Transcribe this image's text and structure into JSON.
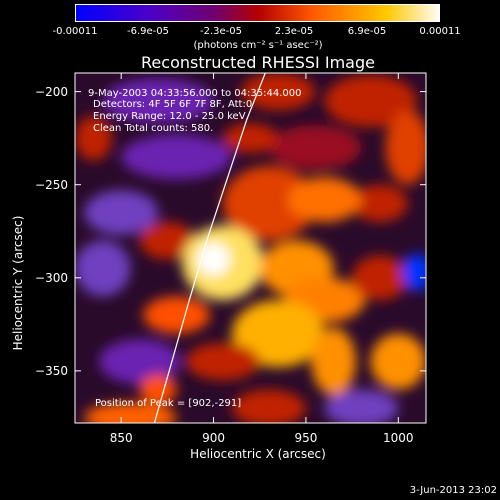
{
  "colorbar": {
    "ticks": [
      "-0.00011",
      "-6.9e-05",
      "-2.3e-05",
      "2.3e-05",
      "6.9e-05",
      "0.00011"
    ],
    "units": "(photons cm⁻² s⁻¹ asec⁻²)",
    "colors": [
      "#0000ff",
      "#5a00c8",
      "#b40000",
      "#ff5a00",
      "#ffb400",
      "#ffffff"
    ]
  },
  "chart_data": {
    "type": "heatmap",
    "title": "Reconstructed RHESSI Image",
    "xlabel": "Heliocentric X (arcsec)",
    "ylabel": "Heliocentric Y (arcsec)",
    "xlim": [
      825,
      1015
    ],
    "ylim": [
      -378,
      -190
    ],
    "x_ticks": [
      850,
      900,
      950,
      1000
    ],
    "y_ticks": [
      -200,
      -250,
      -300,
      -350
    ],
    "x_tick_labels": [
      "850",
      "900",
      "950",
      "1000"
    ],
    "y_tick_labels": [
      "−200",
      "−250",
      "−300",
      "−350"
    ],
    "value_range": [
      -0.00011,
      0.00011
    ],
    "peak": [
      902,
      -291
    ],
    "limb_curve": [
      [
        928,
        -190
      ],
      [
        918,
        -215
      ],
      [
        908,
        -245
      ],
      [
        897,
        -278
      ],
      [
        886,
        -315
      ],
      [
        876,
        -350
      ],
      [
        868,
        -378
      ]
    ],
    "annotations": {
      "time": "9-May-2003 04:33:56.000 to 04:35:44.000",
      "detectors": "Detectors: 4F 5F 6F 7F 8F, Att:0",
      "energy": "Energy Range: 12.0 - 25.0 keV",
      "clean": "Clean    Total counts: 580.",
      "peak_text": "Position of Peak = [902,-291]"
    }
  },
  "timestamp": "3-Jun-2013 23:02"
}
